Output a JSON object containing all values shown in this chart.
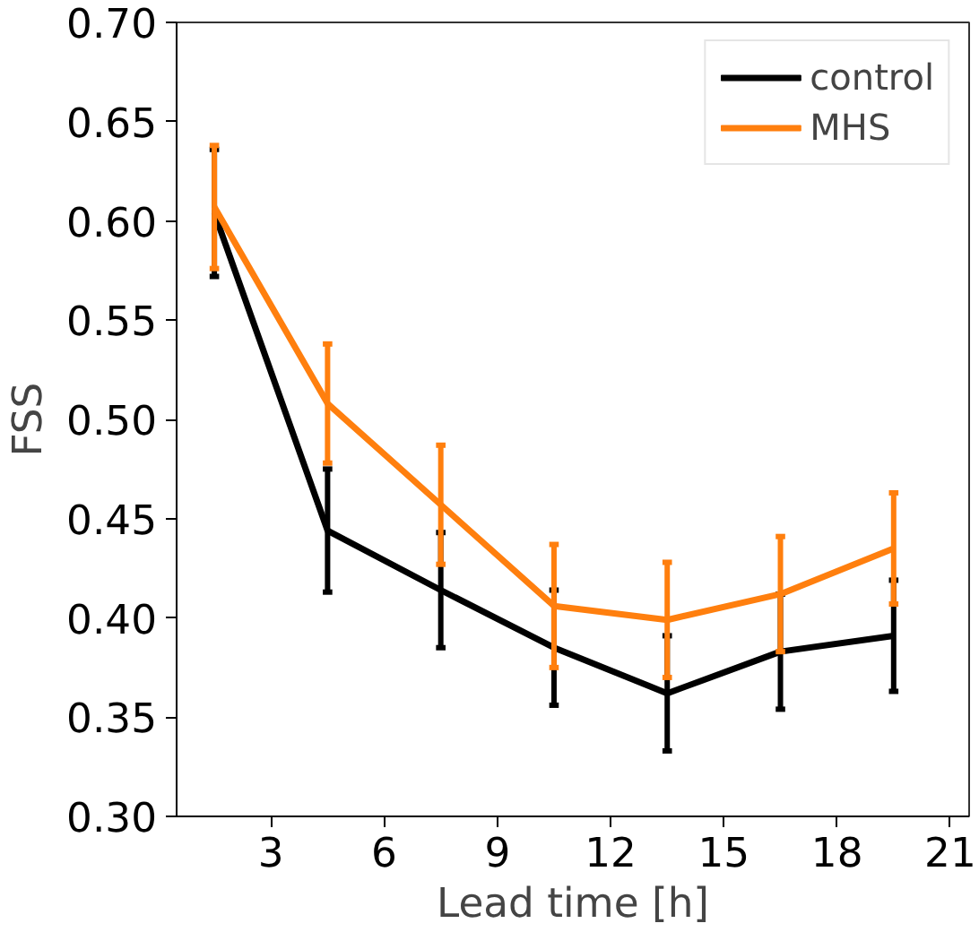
{
  "chart_data": {
    "type": "line",
    "xlabel": "Lead time [h]",
    "ylabel": "FSS",
    "x": [
      1.5,
      4.5,
      7.5,
      10.5,
      13.5,
      16.5,
      19.5
    ],
    "series": [
      {
        "name": "control",
        "color": "#000000",
        "values": [
          0.604,
          0.444,
          0.414,
          0.385,
          0.362,
          0.383,
          0.391
        ],
        "errors": [
          0.032,
          0.031,
          0.029,
          0.029,
          0.029,
          0.029,
          0.028
        ]
      },
      {
        "name": "MHS",
        "color": "#ff7f0e",
        "values": [
          0.607,
          0.508,
          0.457,
          0.406,
          0.399,
          0.412,
          0.435
        ],
        "errors": [
          0.031,
          0.03,
          0.03,
          0.031,
          0.029,
          0.029,
          0.028
        ]
      }
    ],
    "xlim": [
      0.5,
      21.5
    ],
    "ylim": [
      0.3,
      0.7
    ],
    "xticks": [
      3,
      6,
      9,
      12,
      15,
      18,
      21
    ],
    "yticks": [
      {
        "value": 0.3,
        "label": "0.30"
      },
      {
        "value": 0.35,
        "label": "0.35"
      },
      {
        "value": 0.4,
        "label": "0.40"
      },
      {
        "value": 0.45,
        "label": "0.45"
      },
      {
        "value": 0.5,
        "label": "0.50"
      },
      {
        "value": 0.55,
        "label": "0.55"
      },
      {
        "value": 0.6,
        "label": "0.60"
      },
      {
        "value": 0.65,
        "label": "0.65"
      },
      {
        "value": 0.7,
        "label": "0.70"
      }
    ],
    "grid": false,
    "legend": "top right"
  }
}
